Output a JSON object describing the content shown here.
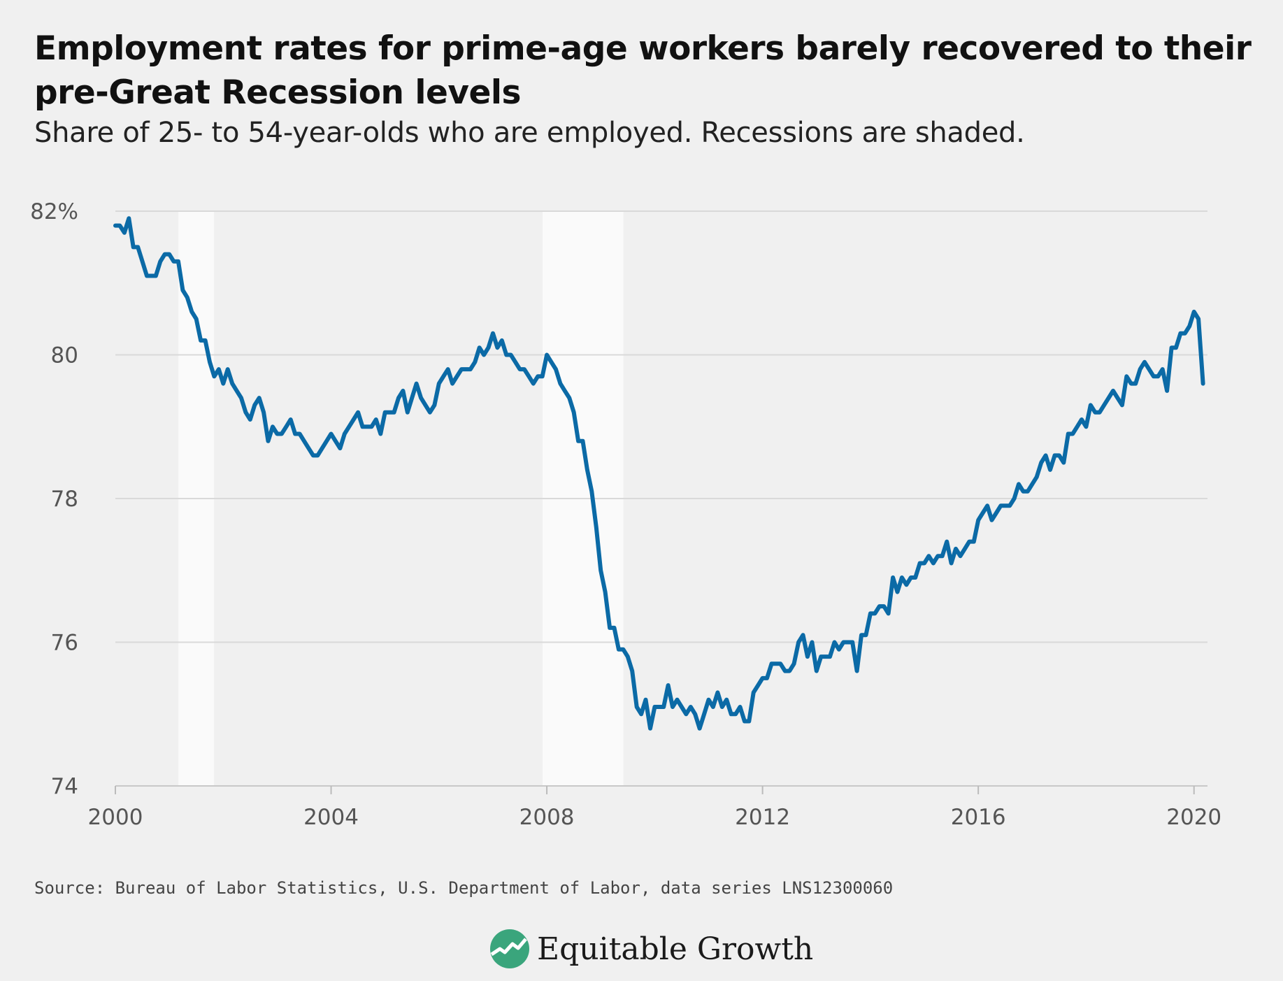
{
  "header": {
    "title": "Employment rates for prime-age workers barely recovered to their pre-Great Recession levels",
    "subtitle": "Share of 25- to 54-year-olds who are employed. Recessions are shaded."
  },
  "footer": {
    "source": "Source: Bureau of Labor Statistics, U.S. Department of Labor, data series LNS12300060",
    "brand": "Equitable Growth",
    "brand_icon": "equitable-growth-logo-icon"
  },
  "colors": {
    "background": "#f0f0f0",
    "line": "#0b6aa6",
    "recession": "#fafafa",
    "grid": "#d9d9d9",
    "logo": "#3aa57c"
  },
  "chart_data": {
    "type": "line",
    "xlim": [
      2000,
      2020.25
    ],
    "ylim": [
      74,
      82
    ],
    "x_ticks": [
      {
        "value": 2000,
        "label": "2000"
      },
      {
        "value": 2004,
        "label": "2004"
      },
      {
        "value": 2008,
        "label": "2008"
      },
      {
        "value": 2012,
        "label": "2012"
      },
      {
        "value": 2016,
        "label": "2016"
      },
      {
        "value": 2020,
        "label": "2020"
      }
    ],
    "y_ticks": [
      {
        "value": 82,
        "label": "82%"
      },
      {
        "value": 80,
        "label": "80"
      },
      {
        "value": 78,
        "label": "78"
      },
      {
        "value": 76,
        "label": "76"
      },
      {
        "value": 74,
        "label": "74"
      }
    ],
    "grid": true,
    "recessions": [
      {
        "start": 2001.17,
        "end": 2001.83
      },
      {
        "start": 2007.92,
        "end": 2009.42
      }
    ],
    "x": [
      2000.0,
      2000.083,
      2000.167,
      2000.25,
      2000.333,
      2000.417,
      2000.5,
      2000.583,
      2000.667,
      2000.75,
      2000.833,
      2000.917,
      2001.0,
      2001.083,
      2001.167,
      2001.25,
      2001.333,
      2001.417,
      2001.5,
      2001.583,
      2001.667,
      2001.75,
      2001.833,
      2001.917,
      2002.0,
      2002.083,
      2002.167,
      2002.25,
      2002.333,
      2002.417,
      2002.5,
      2002.583,
      2002.667,
      2002.75,
      2002.833,
      2002.917,
      2003.0,
      2003.083,
      2003.167,
      2003.25,
      2003.333,
      2003.417,
      2003.5,
      2003.583,
      2003.667,
      2003.75,
      2003.833,
      2003.917,
      2004.0,
      2004.083,
      2004.167,
      2004.25,
      2004.333,
      2004.417,
      2004.5,
      2004.583,
      2004.667,
      2004.75,
      2004.833,
      2004.917,
      2005.0,
      2005.083,
      2005.167,
      2005.25,
      2005.333,
      2005.417,
      2005.5,
      2005.583,
      2005.667,
      2005.75,
      2005.833,
      2005.917,
      2006.0,
      2006.083,
      2006.167,
      2006.25,
      2006.333,
      2006.417,
      2006.5,
      2006.583,
      2006.667,
      2006.75,
      2006.833,
      2006.917,
      2007.0,
      2007.083,
      2007.167,
      2007.25,
      2007.333,
      2007.417,
      2007.5,
      2007.583,
      2007.667,
      2007.75,
      2007.833,
      2007.917,
      2008.0,
      2008.083,
      2008.167,
      2008.25,
      2008.333,
      2008.417,
      2008.5,
      2008.583,
      2008.667,
      2008.75,
      2008.833,
      2008.917,
      2009.0,
      2009.083,
      2009.167,
      2009.25,
      2009.333,
      2009.417,
      2009.5,
      2009.583,
      2009.667,
      2009.75,
      2009.833,
      2009.917,
      2010.0,
      2010.083,
      2010.167,
      2010.25,
      2010.333,
      2010.417,
      2010.5,
      2010.583,
      2010.667,
      2010.75,
      2010.833,
      2010.917,
      2011.0,
      2011.083,
      2011.167,
      2011.25,
      2011.333,
      2011.417,
      2011.5,
      2011.583,
      2011.667,
      2011.75,
      2011.833,
      2011.917,
      2012.0,
      2012.083,
      2012.167,
      2012.25,
      2012.333,
      2012.417,
      2012.5,
      2012.583,
      2012.667,
      2012.75,
      2012.833,
      2012.917,
      2013.0,
      2013.083,
      2013.167,
      2013.25,
      2013.333,
      2013.417,
      2013.5,
      2013.583,
      2013.667,
      2013.75,
      2013.833,
      2013.917,
      2014.0,
      2014.083,
      2014.167,
      2014.25,
      2014.333,
      2014.417,
      2014.5,
      2014.583,
      2014.667,
      2014.75,
      2014.833,
      2014.917,
      2015.0,
      2015.083,
      2015.167,
      2015.25,
      2015.333,
      2015.417,
      2015.5,
      2015.583,
      2015.667,
      2015.75,
      2015.833,
      2015.917,
      2016.0,
      2016.083,
      2016.167,
      2016.25,
      2016.333,
      2016.417,
      2016.5,
      2016.583,
      2016.667,
      2016.75,
      2016.833,
      2016.917,
      2017.0,
      2017.083,
      2017.167,
      2017.25,
      2017.333,
      2017.417,
      2017.5,
      2017.583,
      2017.667,
      2017.75,
      2017.833,
      2017.917,
      2018.0,
      2018.083,
      2018.167,
      2018.25,
      2018.333,
      2018.417,
      2018.5,
      2018.583,
      2018.667,
      2018.75,
      2018.833,
      2018.917,
      2019.0,
      2019.083,
      2019.167,
      2019.25,
      2019.333,
      2019.417,
      2019.5,
      2019.583,
      2019.667,
      2019.75,
      2019.833,
      2019.917,
      2020.0,
      2020.083,
      2020.167
    ],
    "y": [
      81.8,
      81.8,
      81.7,
      81.9,
      81.5,
      81.5,
      81.3,
      81.1,
      81.1,
      81.1,
      81.3,
      81.4,
      81.4,
      81.3,
      81.3,
      80.9,
      80.8,
      80.6,
      80.5,
      80.2,
      80.2,
      79.9,
      79.7,
      79.8,
      79.6,
      79.8,
      79.6,
      79.5,
      79.4,
      79.2,
      79.1,
      79.3,
      79.4,
      79.2,
      78.8,
      79.0,
      78.9,
      78.9,
      79.0,
      79.1,
      78.9,
      78.9,
      78.8,
      78.7,
      78.6,
      78.6,
      78.7,
      78.8,
      78.9,
      78.8,
      78.7,
      78.9,
      79.0,
      79.1,
      79.2,
      79.0,
      79.0,
      79.0,
      79.1,
      78.9,
      79.2,
      79.2,
      79.2,
      79.4,
      79.5,
      79.2,
      79.4,
      79.6,
      79.4,
      79.3,
      79.2,
      79.3,
      79.6,
      79.7,
      79.8,
      79.6,
      79.7,
      79.8,
      79.8,
      79.8,
      79.9,
      80.1,
      80.0,
      80.1,
      80.3,
      80.1,
      80.2,
      80.0,
      80.0,
      79.9,
      79.8,
      79.8,
      79.7,
      79.6,
      79.7,
      79.7,
      80.0,
      79.9,
      79.8,
      79.6,
      79.5,
      79.4,
      79.2,
      78.8,
      78.8,
      78.4,
      78.1,
      77.6,
      77.0,
      76.7,
      76.2,
      76.2,
      75.9,
      75.9,
      75.8,
      75.6,
      75.1,
      75.0,
      75.2,
      74.8,
      75.1,
      75.1,
      75.1,
      75.4,
      75.1,
      75.2,
      75.1,
      75.0,
      75.1,
      75.0,
      74.8,
      75.0,
      75.2,
      75.1,
      75.3,
      75.1,
      75.2,
      75.0,
      75.0,
      75.1,
      74.9,
      74.9,
      75.3,
      75.4,
      75.5,
      75.5,
      75.7,
      75.7,
      75.7,
      75.6,
      75.6,
      75.7,
      76.0,
      76.1,
      75.8,
      76.0,
      75.6,
      75.8,
      75.8,
      75.8,
      76.0,
      75.9,
      76.0,
      76.0,
      76.0,
      75.6,
      76.1,
      76.1,
      76.4,
      76.4,
      76.5,
      76.5,
      76.4,
      76.9,
      76.7,
      76.9,
      76.8,
      76.9,
      76.9,
      77.1,
      77.1,
      77.2,
      77.1,
      77.2,
      77.2,
      77.4,
      77.1,
      77.3,
      77.2,
      77.3,
      77.4,
      77.4,
      77.7,
      77.8,
      77.9,
      77.7,
      77.8,
      77.9,
      77.9,
      77.9,
      78.0,
      78.2,
      78.1,
      78.1,
      78.2,
      78.3,
      78.5,
      78.6,
      78.4,
      78.6,
      78.6,
      78.5,
      78.9,
      78.9,
      79.0,
      79.1,
      79.0,
      79.3,
      79.2,
      79.2,
      79.3,
      79.4,
      79.5,
      79.4,
      79.3,
      79.7,
      79.6,
      79.6,
      79.8,
      79.9,
      79.8,
      79.7,
      79.7,
      79.8,
      79.5,
      80.1,
      80.1,
      80.3,
      80.3,
      80.4,
      80.6,
      80.5,
      79.6
    ]
  }
}
